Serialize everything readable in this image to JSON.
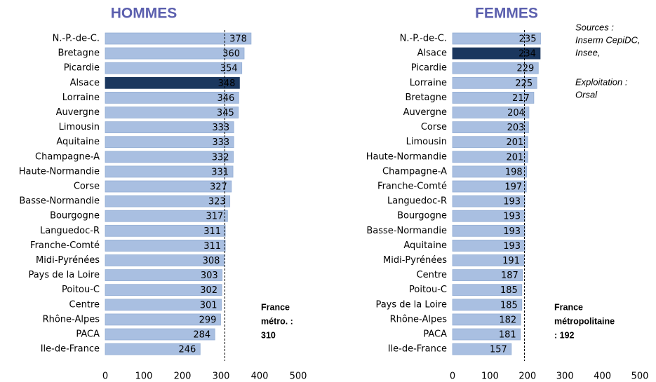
{
  "chart_data": [
    {
      "type": "barh",
      "title": "HOMMES",
      "categories": [
        "N.-P.-de-C.",
        "Bretagne",
        "Picardie",
        "Alsace",
        "Lorraine",
        "Auvergne",
        "Limousin",
        "Aquitaine",
        "Champagne-A",
        "Haute-Normandie",
        "Corse",
        "Basse-Normandie",
        "Bourgogne",
        "Languedoc-R",
        "Franche-Comté",
        "Midi-Pyrénées",
        "Pays de la Loire",
        "Poitou-C",
        "Centre",
        "Rhône-Alpes",
        "PACA",
        "Ile-de-France"
      ],
      "values": [
        378,
        360,
        354,
        348,
        346,
        345,
        333,
        333,
        332,
        331,
        327,
        323,
        317,
        311,
        311,
        308,
        303,
        302,
        301,
        299,
        284,
        246
      ],
      "color": "#a9bfe1",
      "highlight": "Alsace",
      "highlight_color": "#1b375e",
      "xlim": [
        0,
        500
      ],
      "xticks": [
        0,
        100,
        200,
        300,
        400,
        500
      ],
      "reference": {
        "value": 310,
        "label_lines": [
          "France",
          "métro. :",
          "310"
        ]
      }
    },
    {
      "type": "barh",
      "title": "FEMMES",
      "categories": [
        "N.-P.-de-C.",
        "Alsace",
        "Picardie",
        "Lorraine",
        "Bretagne",
        "Auvergne",
        "Corse",
        "Limousin",
        "Haute-Normandie",
        "Champagne-A",
        "Franche-Comté",
        "Languedoc-R",
        "Bourgogne",
        "Basse-Normandie",
        "Aquitaine",
        "Midi-Pyrénées",
        "Centre",
        "Poitou-C",
        "Pays de la Loire",
        "Rhône-Alpes",
        "PACA",
        "Ile-de-France"
      ],
      "values": [
        235,
        234,
        229,
        225,
        217,
        204,
        203,
        201,
        201,
        198,
        197,
        193,
        193,
        193,
        193,
        191,
        187,
        185,
        185,
        182,
        181,
        157
      ],
      "color": "#a9bfe1",
      "highlight": "Alsace",
      "highlight_color": "#1b375e",
      "xlim": [
        0,
        500
      ],
      "xticks": [
        0,
        100,
        200,
        300,
        400,
        500
      ],
      "reference": {
        "value": 192,
        "label_lines": [
          "France",
          "métropolitaine",
          ": 192"
        ]
      }
    }
  ],
  "sources": [
    "Sources :",
    "Inserm CepiDC,",
    "Insee,"
  ],
  "exploitation": [
    "Exploitation  :",
    "Orsal"
  ]
}
